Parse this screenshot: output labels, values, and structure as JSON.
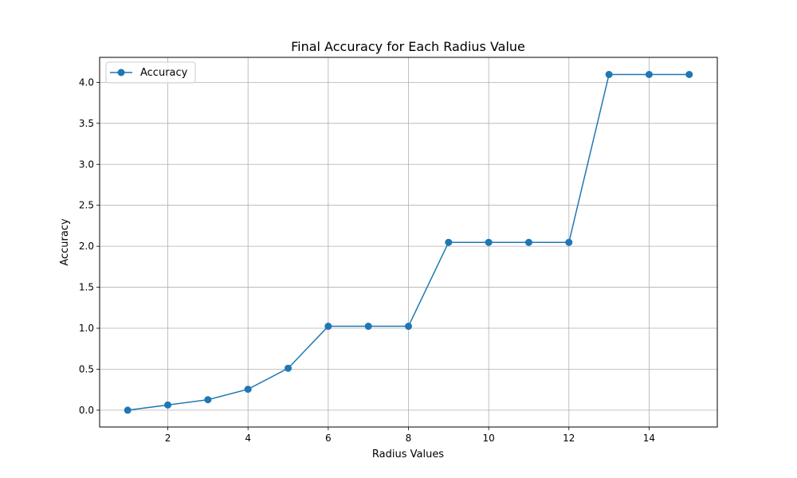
{
  "chart_data": {
    "type": "line",
    "title": "Final Accuracy for Each Radius Value",
    "xlabel": "Radius Values",
    "ylabel": "Accuracy",
    "xlim": [
      0.3,
      15.7
    ],
    "ylim": [
      -0.205,
      4.305
    ],
    "xticks": [
      2,
      4,
      6,
      8,
      10,
      12,
      14
    ],
    "yticks": [
      0.0,
      0.5,
      1.0,
      1.5,
      2.0,
      2.5,
      3.0,
      3.5,
      4.0
    ],
    "ytick_labels": [
      "0.0",
      "0.5",
      "1.0",
      "1.5",
      "2.0",
      "2.5",
      "3.0",
      "3.5",
      "4.0"
    ],
    "grid": true,
    "legend": "upper-left",
    "series": [
      {
        "name": "Accuracy",
        "color": "#1f77b4",
        "marker": "circle",
        "x": [
          1,
          2,
          3,
          4,
          5,
          6,
          7,
          8,
          9,
          10,
          11,
          12,
          13,
          14,
          15
        ],
        "y": [
          0.0,
          0.064,
          0.128,
          0.256,
          0.512,
          1.024,
          1.024,
          1.024,
          2.048,
          2.048,
          2.048,
          2.048,
          4.096,
          4.096,
          4.096
        ]
      }
    ]
  }
}
